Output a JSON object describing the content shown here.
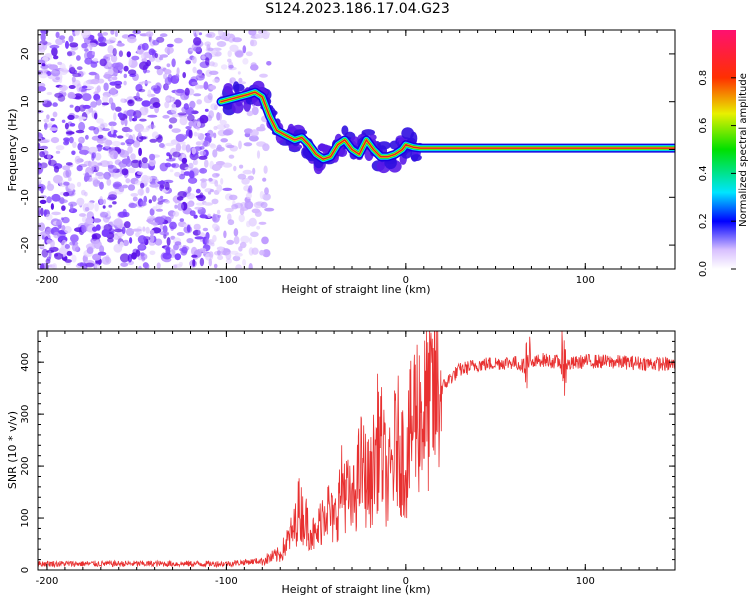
{
  "title": "S124.2023.186.17.04.G23",
  "chart_data": [
    {
      "type": "heatmap",
      "name": "spectrogram",
      "xlabel": "Height of straight line (km)",
      "ylabel": "Frequency (Hz)",
      "xlim": [
        -205,
        150
      ],
      "ylim": [
        -25,
        25
      ],
      "xticks": [
        -200,
        -100,
        0,
        100
      ],
      "yticks": [
        -20,
        -10,
        0,
        10,
        20
      ],
      "ridge": {
        "x": [
          -103,
          -98,
          -93,
          -88,
          -84,
          -80,
          -76,
          -72,
          -67,
          -62,
          -58,
          -54,
          -50,
          -46,
          -42,
          -38,
          -34,
          -30,
          -26,
          -22,
          -18,
          -14,
          -10,
          -6,
          -2,
          0,
          4,
          8,
          15,
          55,
          80,
          85,
          150
        ],
        "y": [
          10,
          10.5,
          11,
          11.5,
          12,
          11,
          7,
          4,
          3,
          2,
          2.5,
          1,
          -1,
          -2,
          -1.5,
          1,
          2,
          0,
          -1,
          2,
          0,
          -1.5,
          -1.5,
          -1,
          0,
          1,
          0.5,
          0.3,
          0.3,
          0.3,
          0.3,
          0.3,
          0.3
        ]
      },
      "colorbar": {
        "label": "Normalized spectral amplitude",
        "ticks": [
          "0.0",
          "0.2",
          "0.4",
          "0.6",
          "0.8"
        ],
        "range": [
          0,
          1
        ]
      }
    },
    {
      "type": "line",
      "name": "snr",
      "xlabel": "Height of straight line (km)",
      "ylabel": "SNR (10 * v/v)",
      "xlim": [
        -205,
        150
      ],
      "ylim": [
        0,
        460
      ],
      "xticks": [
        -200,
        -100,
        0,
        100
      ],
      "yticks": [
        0,
        100,
        200,
        300,
        400
      ],
      "color": "#e83030",
      "series": [
        {
          "name": "SNR",
          "x": [
            -205,
            -150,
            -100,
            -80,
            -70,
            -62,
            -60,
            -55,
            -50,
            -45,
            -40,
            -35,
            -30,
            -25,
            -20,
            -15,
            -10,
            -5,
            0,
            5,
            10,
            15,
            20,
            25,
            30,
            40,
            50,
            60,
            68,
            75,
            85,
            90,
            100,
            120,
            150
          ],
          "y": [
            12,
            12,
            12,
            18,
            30,
            80,
            120,
            90,
            60,
            130,
            90,
            170,
            120,
            200,
            160,
            260,
            160,
            250,
            200,
            310,
            300,
            330,
            350,
            370,
            385,
            395,
            398,
            400,
            390,
            405,
            400,
            395,
            402,
            400,
            395
          ]
        }
      ]
    }
  ]
}
